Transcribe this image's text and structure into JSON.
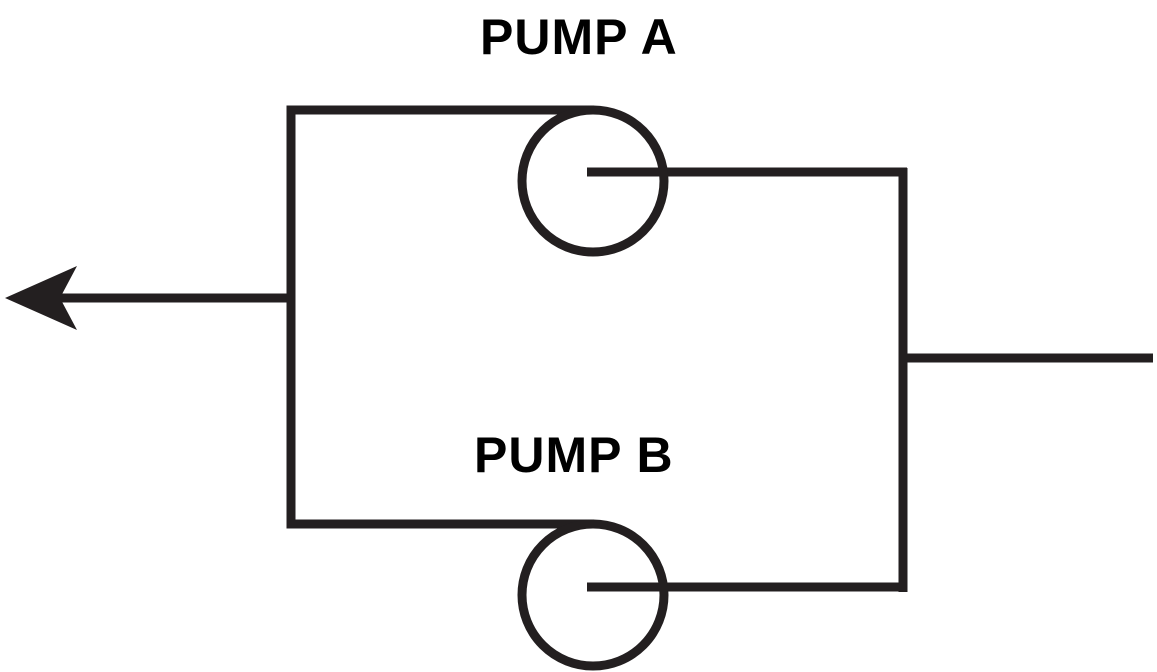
{
  "diagram": {
    "pump_a": {
      "label": "PUMP A"
    },
    "pump_b": {
      "label": "PUMP B"
    },
    "colors": {
      "line": "#231f20",
      "background": "#ffffff",
      "text": "#000000"
    },
    "icons": {
      "pump": "pump-circle-icon",
      "flow": "arrow-left-icon"
    }
  }
}
